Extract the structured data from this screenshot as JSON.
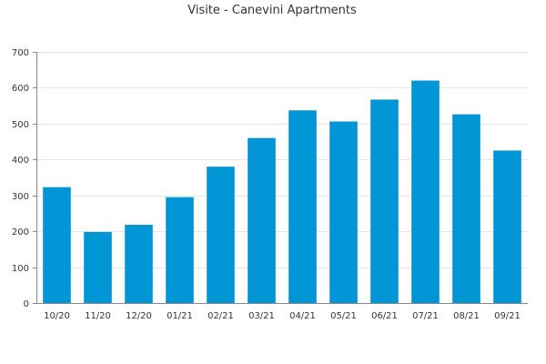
{
  "chart_data": {
    "type": "bar",
    "title": "Visite - Canevini Apartments",
    "xlabel": "",
    "ylabel": "",
    "categories": [
      "10/20",
      "11/20",
      "12/20",
      "01/21",
      "02/21",
      "03/21",
      "04/21",
      "05/21",
      "06/21",
      "07/21",
      "08/21",
      "09/21"
    ],
    "values": [
      323,
      198,
      218,
      295,
      380,
      460,
      537,
      506,
      567,
      620,
      526,
      425
    ],
    "ylim": [
      0,
      700
    ],
    "yticks": [
      0,
      100,
      200,
      300,
      400,
      500,
      600,
      700
    ],
    "grid": true,
    "legend": "none",
    "bar_color": "#0096d6"
  }
}
